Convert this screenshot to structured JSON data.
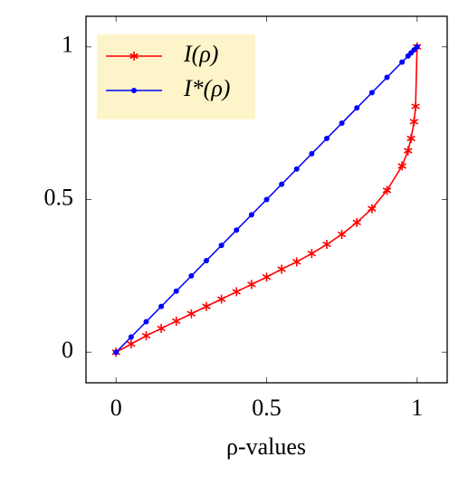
{
  "chart_data": {
    "type": "line",
    "xlabel": "ρ-values",
    "xlim": [
      -0.1,
      1.1
    ],
    "ylim": [
      -0.1,
      1.1
    ],
    "xticks": [
      0,
      0.5,
      1
    ],
    "yticks": [
      0,
      0.5,
      1
    ],
    "legend": "upper left",
    "series": [
      {
        "name": "I(ρ)",
        "color": "#ff0000",
        "marker": "star",
        "x": [
          0,
          0.05,
          0.1,
          0.15,
          0.2,
          0.25,
          0.3,
          0.35,
          0.4,
          0.45,
          0.5,
          0.55,
          0.6,
          0.65,
          0.7,
          0.75,
          0.8,
          0.85,
          0.9,
          0.95,
          0.97,
          0.98,
          0.99,
          0.995,
          1
        ],
        "values": [
          0,
          0.027,
          0.054,
          0.078,
          0.102,
          0.126,
          0.15,
          0.174,
          0.198,
          0.222,
          0.246,
          0.272,
          0.296,
          0.323,
          0.353,
          0.386,
          0.425,
          0.47,
          0.53,
          0.61,
          0.66,
          0.7,
          0.755,
          0.805,
          1
        ]
      },
      {
        "name": "I*(ρ)",
        "color": "#0000ff",
        "marker": "circle",
        "x": [
          0,
          0.05,
          0.1,
          0.15,
          0.2,
          0.25,
          0.3,
          0.35,
          0.4,
          0.45,
          0.5,
          0.55,
          0.6,
          0.65,
          0.7,
          0.75,
          0.8,
          0.85,
          0.9,
          0.95,
          0.97,
          0.98,
          0.99,
          1
        ],
        "values": [
          0,
          0.05,
          0.1,
          0.15,
          0.2,
          0.25,
          0.3,
          0.35,
          0.4,
          0.45,
          0.5,
          0.55,
          0.6,
          0.65,
          0.7,
          0.75,
          0.8,
          0.85,
          0.9,
          0.95,
          0.97,
          0.98,
          0.99,
          1
        ]
      }
    ]
  }
}
